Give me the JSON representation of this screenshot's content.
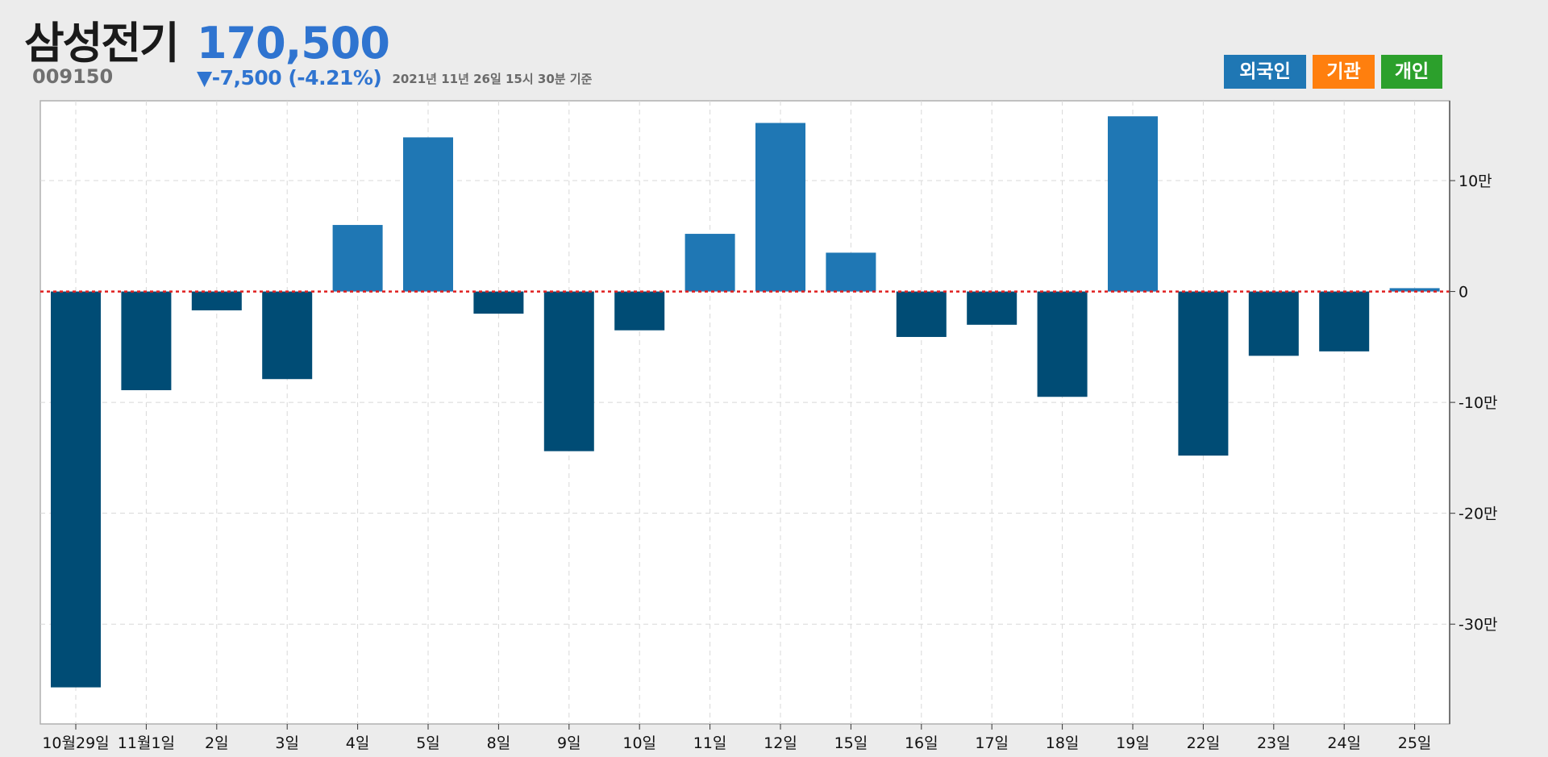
{
  "header": {
    "stock_name": "삼성전기",
    "stock_code": "009150",
    "price": "170,500",
    "change": "▼-7,500 (-4.21%)",
    "timestamp": "2021년 11년 26일 15시 30분 기준",
    "price_color": "#2f74d0"
  },
  "legend": {
    "foreign": {
      "label": "외국인",
      "color": "#1f77b4"
    },
    "institution": {
      "label": "기관",
      "color": "#ff7f0e"
    },
    "individual": {
      "label": "개인",
      "color": "#2ca02c"
    }
  },
  "chart_data": {
    "type": "bar",
    "categories": [
      "10월29일",
      "11월1일",
      "2일",
      "3일",
      "4일",
      "5일",
      "8일",
      "9일",
      "10일",
      "11일",
      "12일",
      "15일",
      "16일",
      "17일",
      "18일",
      "19일",
      "22일",
      "23일",
      "24일",
      "25일"
    ],
    "series": [
      {
        "name": "외국인",
        "values": [
          -357000,
          -89000,
          -17000,
          -79000,
          60000,
          139000,
          -20000,
          -144000,
          -35000,
          52000,
          152000,
          35000,
          -41000,
          -30000,
          -95000,
          158000,
          -148000,
          -58000,
          -54000,
          3000
        ]
      }
    ],
    "positive_color": "#1f77b4",
    "negative_color": "#004c75",
    "y_ticks": [
      {
        "value": 100000,
        "label": "10만"
      },
      {
        "value": 0,
        "label": "0"
      },
      {
        "value": -100000,
        "label": "-10만"
      },
      {
        "value": -200000,
        "label": "-20만"
      },
      {
        "value": -300000,
        "label": "-30만"
      }
    ],
    "ylim": [
      -390000,
      172000
    ],
    "zero_line_color": "#e02020",
    "grid": true,
    "y_axis_position": "right"
  }
}
